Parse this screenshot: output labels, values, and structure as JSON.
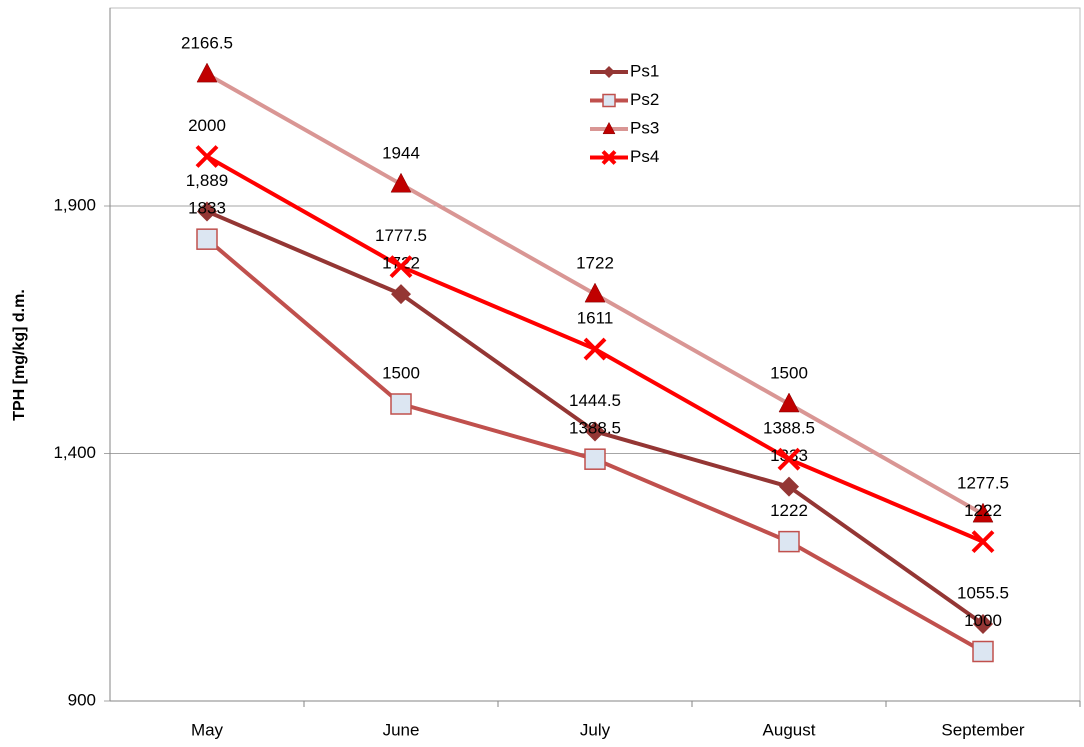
{
  "chart_data": {
    "type": "line",
    "y_label": "TPH [mg/kg] d.m.",
    "categories": [
      "May",
      "June",
      "July",
      "August",
      "September"
    ],
    "ylim": [
      900,
      2300
    ],
    "yticks": [
      {
        "value": 900,
        "label": "900"
      },
      {
        "value": 1400,
        "label": "1,400"
      },
      {
        "value": 1900,
        "label": "1,900"
      }
    ],
    "grid": true,
    "legend": "top",
    "series": [
      {
        "name": "Ps1",
        "color": "#943634",
        "marker": "diamond",
        "marker_color": "#943634",
        "values": [
          1889,
          1722,
          1444.5,
          1333,
          1055.5
        ],
        "value_labels": [
          "1,889",
          "1722",
          "1444.5",
          "1333",
          "1055.5"
        ]
      },
      {
        "name": "Ps2",
        "color": "#c0504d",
        "marker": "square",
        "marker_color": "#dce6f2",
        "values": [
          1833,
          1500,
          1388.5,
          1222,
          1000
        ]
      },
      {
        "name": "Ps3",
        "color": "#d99694",
        "marker": "triangle",
        "marker_color": "#c00000",
        "values": [
          2166.5,
          1944,
          1722,
          1500,
          1277.5
        ]
      },
      {
        "name": "Ps4",
        "color": "#ff0000",
        "marker": "x",
        "marker_color": "#ff0000",
        "values": [
          2000,
          1777.5,
          1611,
          1388.5,
          1222
        ]
      }
    ]
  }
}
